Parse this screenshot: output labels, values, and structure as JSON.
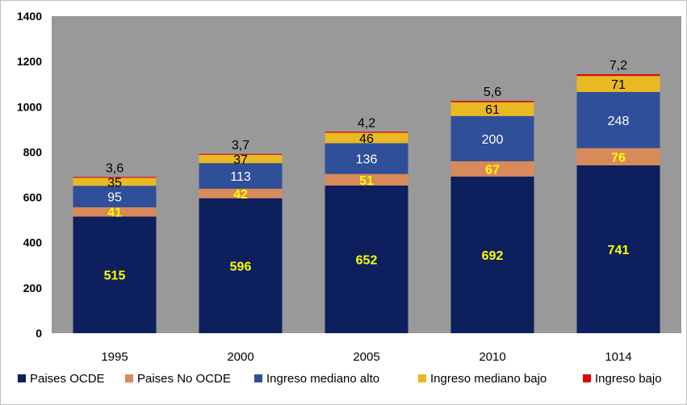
{
  "chart_data": {
    "type": "bar",
    "stacked": true,
    "categories": [
      "1995",
      "2000",
      "2005",
      "2010",
      "1014"
    ],
    "series": [
      {
        "name": "Paises OCDE",
        "color": "#0d1f5c",
        "label_color": "#ffff00",
        "label_bold": true,
        "values": [
          515,
          596,
          652,
          692,
          741
        ],
        "labels": [
          "515",
          "596",
          "652",
          "692",
          "741"
        ]
      },
      {
        "name": "Paises No OCDE",
        "color": "#d98a5a",
        "label_color": "#ffff00",
        "label_bold": true,
        "values": [
          41,
          42,
          51,
          67,
          76
        ],
        "labels": [
          "41",
          "42",
          "51",
          "67",
          "76"
        ]
      },
      {
        "name": "Ingreso mediano alto",
        "color": "#2f4f98",
        "label_color": "#ffffff",
        "label_bold": false,
        "values": [
          95,
          113,
          136,
          200,
          248
        ],
        "labels": [
          "95",
          "113",
          "136",
          "200",
          "248"
        ]
      },
      {
        "name": "Ingreso mediano bajo",
        "color": "#e8b923",
        "label_color": "#000000",
        "label_bold": false,
        "values": [
          35,
          37,
          46,
          61,
          71
        ],
        "labels": [
          "35",
          "37",
          "46",
          "61",
          "71"
        ]
      },
      {
        "name": "Ingreso bajo",
        "color": "#e00000",
        "label_color": "#000000",
        "label_bold": false,
        "values": [
          3.6,
          3.7,
          4.2,
          5.6,
          7.2
        ],
        "labels": [
          "3,6",
          "3,7",
          "4,2",
          "5,6",
          "7,2"
        ]
      }
    ],
    "ylim": [
      0,
      1400
    ],
    "yticks": [
      0,
      200,
      400,
      600,
      800,
      1000,
      1200,
      1400
    ],
    "grid": false,
    "plot_background": "#999999",
    "legend_position": "bottom",
    "title": "",
    "xlabel": "",
    "ylabel": ""
  }
}
